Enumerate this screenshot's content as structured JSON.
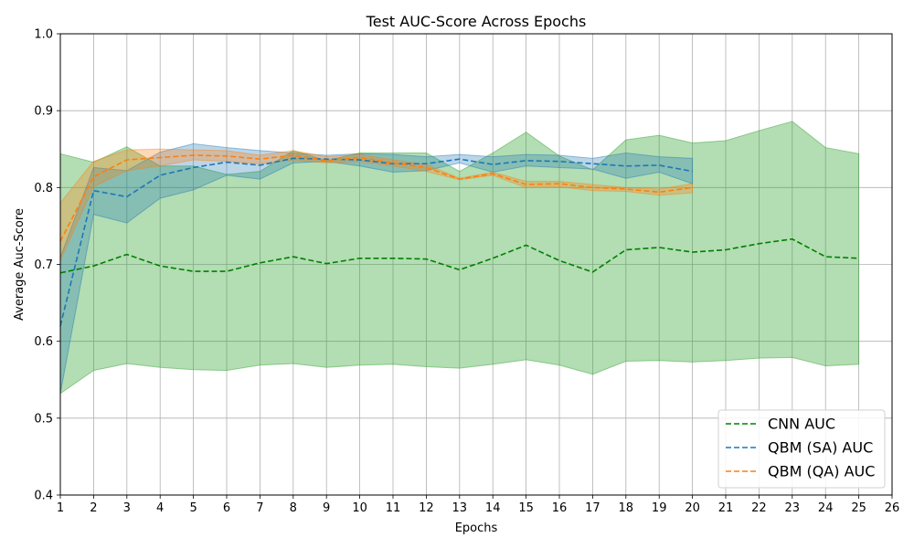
{
  "chart_data": {
    "type": "line",
    "title": "Test AUC-Score Across Epochs",
    "xlabel": "Epochs",
    "ylabel": "Average Auc-Score",
    "xlim": [
      1,
      26
    ],
    "ylim": [
      0.4,
      1.0
    ],
    "xticks": [
      1,
      2,
      3,
      4,
      5,
      6,
      7,
      8,
      9,
      10,
      11,
      12,
      13,
      14,
      15,
      16,
      17,
      18,
      19,
      20,
      21,
      22,
      23,
      24,
      25,
      26
    ],
    "yticks": [
      0.4,
      0.5,
      0.6,
      0.7,
      0.8,
      0.9,
      1.0
    ],
    "grid": true,
    "legend_position": "bottom-right",
    "series": [
      {
        "name": "CNN AUC",
        "color": "#008000",
        "band_color": "#2ca02c",
        "x": [
          1,
          2,
          3,
          4,
          5,
          6,
          7,
          8,
          9,
          10,
          11,
          12,
          13,
          14,
          15,
          16,
          17,
          18,
          19,
          20,
          21,
          22,
          23,
          24,
          25
        ],
        "values": [
          0.689,
          0.698,
          0.713,
          0.698,
          0.691,
          0.691,
          0.702,
          0.71,
          0.701,
          0.708,
          0.708,
          0.707,
          0.693,
          0.708,
          0.725,
          0.705,
          0.69,
          0.719,
          0.722,
          0.716,
          0.719,
          0.727,
          0.733,
          0.71,
          0.708
        ],
        "lower": [
          0.532,
          0.562,
          0.571,
          0.566,
          0.563,
          0.562,
          0.569,
          0.571,
          0.566,
          0.569,
          0.57,
          0.567,
          0.565,
          0.57,
          0.576,
          0.569,
          0.557,
          0.574,
          0.575,
          0.573,
          0.575,
          0.578,
          0.579,
          0.568,
          0.57
        ],
        "upper": [
          0.844,
          0.833,
          0.853,
          0.828,
          0.828,
          0.817,
          0.821,
          0.848,
          0.835,
          0.845,
          0.845,
          0.845,
          0.821,
          0.845,
          0.872,
          0.841,
          0.823,
          0.862,
          0.868,
          0.858,
          0.861,
          0.874,
          0.886,
          0.852,
          0.844
        ]
      },
      {
        "name": "QBM (SA) AUC",
        "color": "#1f77b4",
        "band_color": "#1f77b4",
        "x": [
          1,
          2,
          3,
          4,
          5,
          6,
          7,
          8,
          9,
          10,
          11,
          12,
          13,
          14,
          15,
          16,
          17,
          18,
          19,
          20
        ],
        "values": [
          0.62,
          0.796,
          0.788,
          0.816,
          0.826,
          0.833,
          0.829,
          0.838,
          0.837,
          0.836,
          0.831,
          0.831,
          0.837,
          0.83,
          0.835,
          0.834,
          0.831,
          0.828,
          0.829,
          0.821
        ],
        "lower": [
          0.532,
          0.765,
          0.754,
          0.786,
          0.797,
          0.816,
          0.811,
          0.832,
          0.834,
          0.828,
          0.82,
          0.822,
          0.832,
          0.82,
          0.828,
          0.826,
          0.824,
          0.812,
          0.82,
          0.805
        ],
        "upper": [
          0.709,
          0.826,
          0.822,
          0.846,
          0.857,
          0.852,
          0.848,
          0.845,
          0.842,
          0.844,
          0.843,
          0.84,
          0.843,
          0.84,
          0.843,
          0.842,
          0.838,
          0.845,
          0.84,
          0.838
        ]
      },
      {
        "name": "QBM (QA) AUC",
        "color": "#ff7f0e",
        "band_color": "#ff7f0e",
        "x": [
          1,
          2,
          3,
          4,
          5,
          6,
          7,
          8,
          9,
          10,
          11,
          12,
          13,
          14,
          15,
          16,
          17,
          18,
          19,
          20
        ],
        "values": [
          0.73,
          0.814,
          0.836,
          0.839,
          0.842,
          0.841,
          0.837,
          0.842,
          0.835,
          0.839,
          0.832,
          0.826,
          0.811,
          0.818,
          0.804,
          0.805,
          0.8,
          0.798,
          0.794,
          0.8
        ],
        "lower": [
          0.705,
          0.801,
          0.822,
          0.828,
          0.836,
          0.834,
          0.831,
          0.836,
          0.832,
          0.834,
          0.828,
          0.821,
          0.81,
          0.816,
          0.8,
          0.801,
          0.796,
          0.795,
          0.79,
          0.793
        ],
        "upper": [
          0.78,
          0.834,
          0.849,
          0.85,
          0.849,
          0.848,
          0.842,
          0.848,
          0.84,
          0.843,
          0.836,
          0.83,
          0.812,
          0.82,
          0.808,
          0.808,
          0.804,
          0.8,
          0.798,
          0.805
        ]
      }
    ]
  }
}
